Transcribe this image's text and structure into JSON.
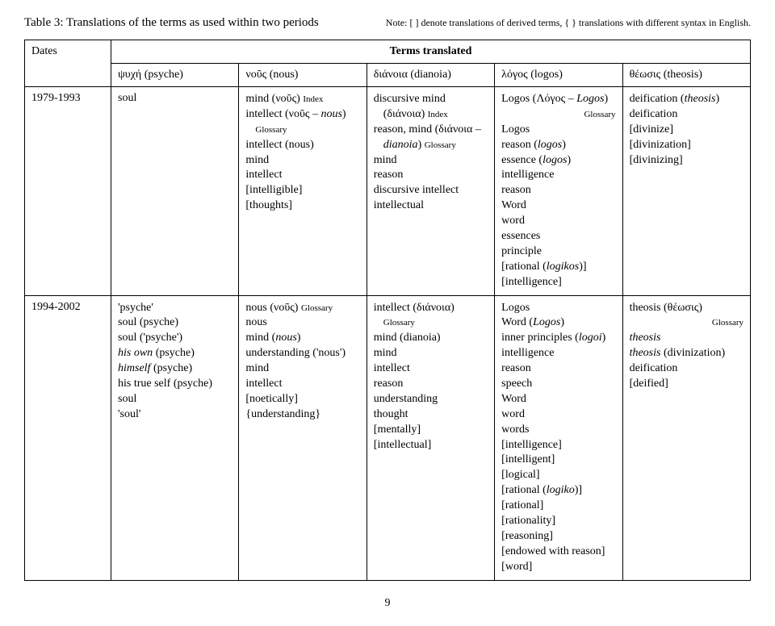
{
  "caption": "Table 3:  Translations of the terms as used within two periods",
  "note": "Note: [ ] denote translations of derived terms, { } translations with different syntax in English.",
  "headers": {
    "dates": "Dates",
    "terms": "Terms translated",
    "col1": "ψυχή (psyche)",
    "col2": "νοῦς (nous)",
    "col3": "διάνοια (dianoia)",
    "col4": "λόγος (logos)",
    "col5": "θέωσις (theosis)",
    "col2_italic": "nous",
    "col5_italic": "theosis"
  },
  "row1": {
    "dates": "1979-1993",
    "psyche": "soul",
    "nous": {
      "l1a": "mind (νοῦς) ",
      "l1b": "Index",
      "l2a": "intellect (νοῦς – ",
      "l2b": "nous",
      "l2c": ")",
      "l2d": "Glossary",
      "l3": "intellect (nous)",
      "l4": "mind",
      "l5": "intellect",
      "l6": "[intelligible]",
      "l7": "[thoughts]"
    },
    "dianoia": {
      "l1": "discursive mind",
      "l2a": "(διάνοια) ",
      "l2b": "Index",
      "l3a": "reason, mind (διάνοια –",
      "l3b": "dianoia",
      "l3c": ") ",
      "l3d": "Glossary",
      "l4": "mind",
      "l5": "reason",
      "l6": "discursive intellect",
      "l7": "intellectual"
    },
    "logos": {
      "l1a": "Logos (Λόγος – ",
      "l1b": "Logos",
      "l1c": ")",
      "l1d": "Glossary",
      "l2": "Logos",
      "l3a": "reason (",
      "l3b": "logos",
      "l3c": ")",
      "l4a": "essence (",
      "l4b": "logos",
      "l4c": ")",
      "l5": "intelligence",
      "l6": "reason",
      "l7": "Word",
      "l8": "word",
      "l9": "essences",
      "l10": "principle",
      "l11a": "[rational (",
      "l11b": "logikos",
      "l11c": ")]",
      "l12": "[intelligence]"
    },
    "theosis": {
      "l1a": "deification (",
      "l1b": "theosis",
      "l1c": ")",
      "l2": "deification",
      "l3": "[divinize]",
      "l4": "[divinization]",
      "l5": "[divinizing]"
    }
  },
  "row2": {
    "dates": "1994-2002",
    "psyche": {
      "l1": "'psyche'",
      "l2": "soul (psyche)",
      "l3": "soul ('psyche')",
      "l4a": "his own",
      "l4b": " (psyche)",
      "l5a": "himself",
      "l5b": " (psyche)",
      "l6": "his true self (psyche)",
      "l7": "soul",
      "l8": "'soul'"
    },
    "nous": {
      "l1a": "nous (νοῦς) ",
      "l1b": "Glossary",
      "l2": "nous",
      "l3a": "mind (",
      "l3b": "nous",
      "l3c": ")",
      "l4": "understanding ('nous')",
      "l5": "mind",
      "l6": "intellect",
      "l7": "[noetically]",
      "l8": "{understanding}"
    },
    "dianoia": {
      "l1": "intellect (διάνοια)",
      "l1b": "Glossary",
      "l2": "mind (dianoia)",
      "l3": "mind",
      "l4": "intellect",
      "l5": "reason",
      "l6": "understanding",
      "l7": "thought",
      "l8": "[mentally]",
      "l9": "[intellectual]"
    },
    "logos": {
      "l1": "Logos",
      "l2a": "Word (",
      "l2b": "Logos",
      "l2c": ")",
      "l3a": "inner principles (",
      "l3b": "logoi",
      "l3c": ")",
      "l4": "intelligence",
      "l5": "reason",
      "l6": "speech",
      "l7": "Word",
      "l8": "word",
      "l9": "words",
      "l10": "[intelligence]",
      "l11": "[intelligent]",
      "l12": "[logical]",
      "l13a": "[rational (",
      "l13b": "logiko",
      "l13c": ")]",
      "l14": "[rational]",
      "l15": "[rationality]",
      "l16": "[reasoning]",
      "l17": "[endowed with reason]",
      "l18": "[word]"
    },
    "theosis": {
      "l1": "theosis (θέωσις)",
      "l1b": "Glossary",
      "l2": "theosis",
      "l3a": "theosis",
      "l3b": " (divinization)",
      "l4": "deification",
      "l5": "[deified]"
    }
  },
  "pagenum": "9"
}
